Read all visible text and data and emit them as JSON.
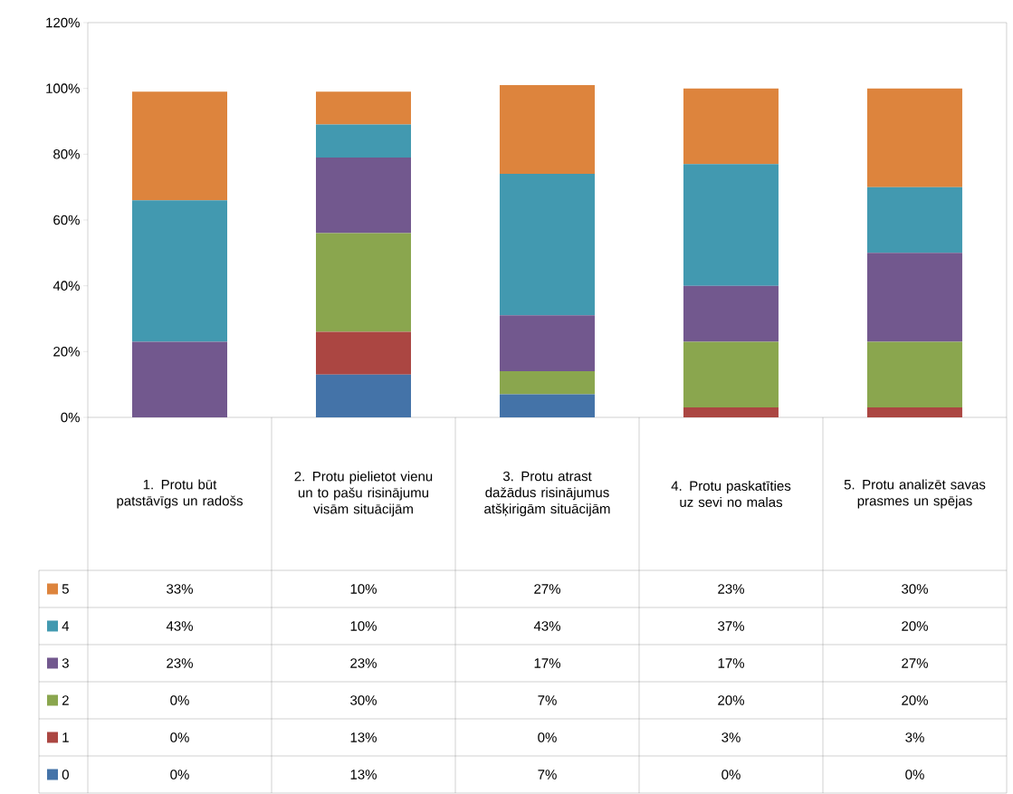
{
  "chart_data": {
    "type": "bar",
    "stacked": true,
    "categories": [
      "1. Protu būt patstāvīgs un radošs",
      "2. Protu pielietot vienu un to pašu risinājumu visām situācijām",
      "3. Protu atrast dažādus risinājumus atšķirigām situācijām",
      "4. Protu paskatīties uz sevi no malas",
      "5. Protu analizēt savas prasmes un spējas"
    ],
    "series": [
      {
        "name": "0",
        "color": "#4473a8",
        "values": [
          0,
          13,
          7,
          0,
          0
        ],
        "value_labels": [
          "0%",
          "13%",
          "7%",
          "0%",
          "0%"
        ]
      },
      {
        "name": "1",
        "color": "#ab4642",
        "values": [
          0,
          13,
          0,
          3,
          3
        ],
        "value_labels": [
          "0%",
          "13%",
          "0%",
          "3%",
          "3%"
        ]
      },
      {
        "name": "2",
        "color": "#8aa64e",
        "values": [
          0,
          30,
          7,
          20,
          20
        ],
        "value_labels": [
          "0%",
          "30%",
          "7%",
          "20%",
          "20%"
        ]
      },
      {
        "name": "3",
        "color": "#72588e",
        "values": [
          23,
          23,
          17,
          17,
          27
        ],
        "value_labels": [
          "23%",
          "23%",
          "17%",
          "17%",
          "27%"
        ]
      },
      {
        "name": "4",
        "color": "#4299b0",
        "values": [
          43,
          10,
          43,
          37,
          20
        ],
        "value_labels": [
          "43%",
          "10%",
          "43%",
          "37%",
          "20%"
        ]
      },
      {
        "name": "5",
        "color": "#dd843d",
        "values": [
          33,
          10,
          27,
          23,
          30
        ],
        "value_labels": [
          "33%",
          "10%",
          "27%",
          "23%",
          "30%"
        ]
      }
    ],
    "ylim": [
      0,
      120
    ],
    "yticks": [
      {
        "value": 0,
        "label": "0%"
      },
      {
        "value": 20,
        "label": "20%"
      },
      {
        "value": 40,
        "label": "40%"
      },
      {
        "value": 60,
        "label": "60%"
      },
      {
        "value": 80,
        "label": "80%"
      },
      {
        "value": 100,
        "label": "100%"
      },
      {
        "value": 120,
        "label": "120%"
      }
    ],
    "data_labels": true,
    "legend": "bottom",
    "grid": false
  }
}
